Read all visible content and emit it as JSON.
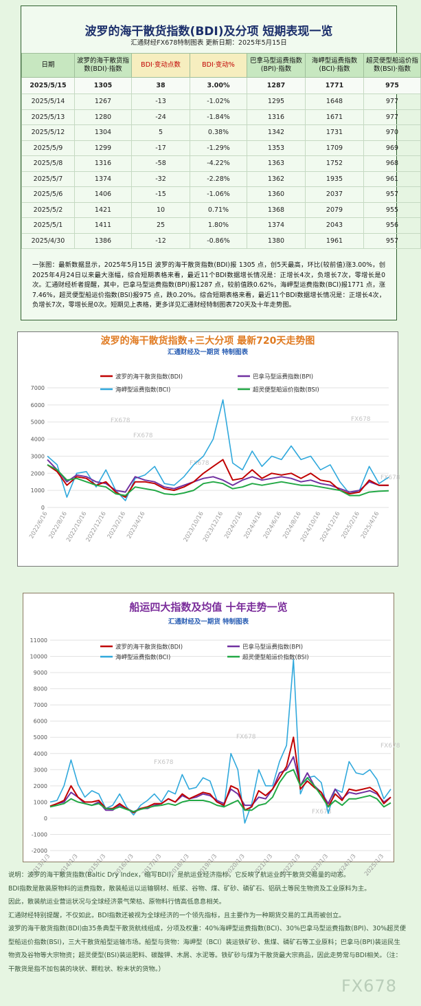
{
  "header": {
    "title": "波罗的海干散货指数(BDI)及分项  短期表现一览",
    "subtitle": "汇通财经FX678特制图表      更新日期：2025年5月15日"
  },
  "table": {
    "header": [
      "日期",
      "波罗的海干散货指数(BDI)·指数",
      "BDI·变动点数",
      "BDI·变动%",
      "巴拿马型运费指数(BPI)·指数",
      "海岬型运费指数(BCI)·指数",
      "超灵便型船运价指数(BSI)·指数"
    ],
    "rows": [
      [
        "2025/5/15",
        1305,
        38,
        "3.00%",
        1287,
        1771,
        975
      ],
      [
        "2025/5/14",
        1267,
        -13,
        "-1.02%",
        1295,
        1648,
        977
      ],
      [
        "2025/5/13",
        1280,
        -24,
        "-1.84%",
        1316,
        1671,
        977
      ],
      [
        "2025/5/12",
        1304,
        5,
        "0.38%",
        1342,
        1731,
        970
      ],
      [
        "2025/5/9",
        1299,
        -17,
        "-1.29%",
        1353,
        1709,
        969
      ],
      [
        "2025/5/8",
        1316,
        -58,
        "-4.22%",
        1363,
        1752,
        968
      ],
      [
        "2025/5/7",
        1374,
        -32,
        "-2.28%",
        1362,
        1935,
        961
      ],
      [
        "2025/5/6",
        1406,
        -15,
        "-1.06%",
        1360,
        2037,
        957
      ],
      [
        "2025/5/2",
        1421,
        10,
        "0.71%",
        1368,
        2079,
        955
      ],
      [
        "2025/5/1",
        1411,
        25,
        "1.80%",
        1374,
        2043,
        956
      ],
      [
        "2025/4/30",
        1386,
        -12,
        "-0.86%",
        1380,
        1961,
        957
      ]
    ]
  },
  "summary": "一张图：最新数据显示，2025年5月15日 波罗的海干散货指数(BDI)报 1305 点，创5天最高，环比(较前值)涨3.00%，创2025年4月24日以来最大涨幅，综合短期表格来看，最近11个BDI数据增长情况是：正增长4次，负增长7次，零增长是0次。汇通财经析者提醒，其中，巴拿马型运费指数(BPI)报1287 点，较前值跌0.62%，海岬型运费指数(BCI)报1771 点，涨7.46%，超灵便型船运价指数(BSI)报975 点，跌0.20%。综合短期表格来看，最近11个BDI数据增长情况是：正增长4次，负增长7次，零增长是0次。短期见上表格，更多详见汇通财经特制图表720天及十年走势图。",
  "watermark": "FX678",
  "chart_data": [
    {
      "type": "line",
      "title": "波罗的海干散货指数+三大分项  最新720天走势图",
      "subtitle": "汇通财经及一期货  特制图表",
      "grid": true,
      "categories": [
        "2022/6/16",
        null,
        "2022/8/16",
        null,
        "2022/10/16",
        null,
        "2022/12/16",
        null,
        "2023/2/16",
        null,
        "2023/4/16",
        null,
        null,
        null,
        null,
        null,
        "2023/10/16",
        null,
        "2023/12/16",
        null,
        "2024/2/16",
        null,
        "2024/4/16",
        null,
        "2024/6/16",
        null,
        "2024/8/16",
        null,
        "2024/10/16",
        null,
        "2024/12/16",
        null,
        "2025/2/16",
        null,
        "2025/4/16",
        null
      ],
      "ylim": [
        0,
        7000
      ],
      "yticks": [
        0,
        1000,
        2000,
        3000,
        4000,
        5000,
        6000,
        7000
      ],
      "series": [
        {
          "name": "波罗的海干散货指数(BDI)",
          "color": "#c00000",
          "values": [
            2500,
            2100,
            1300,
            1800,
            1700,
            1300,
            1500,
            900,
            600,
            1500,
            1500,
            1400,
            1100,
            1000,
            1200,
            1500,
            2000,
            2400,
            2800,
            1600,
            1700,
            2200,
            1700,
            2000,
            1900,
            2000,
            1700,
            2000,
            1600,
            1500,
            1000,
            800,
            900,
            1600,
            1300,
            1305
          ]
        },
        {
          "name": "巴拿马型运费指数(BPI)",
          "color": "#7030a0",
          "values": [
            2800,
            2200,
            1500,
            1900,
            1800,
            1500,
            1400,
            1000,
            900,
            1800,
            1600,
            1500,
            1200,
            1100,
            1300,
            1500,
            1700,
            1800,
            1600,
            1300,
            1600,
            1800,
            1600,
            1700,
            1800,
            1700,
            1500,
            1600,
            1400,
            1300,
            1100,
            900,
            1000,
            1500,
            1300,
            1287
          ]
        },
        {
          "name": "海岬型运费指数(BCI)",
          "color": "#2fa8dc",
          "values": [
            3000,
            2500,
            600,
            2000,
            2100,
            1200,
            2200,
            1000,
            400,
            1700,
            1900,
            2400,
            1400,
            1300,
            1800,
            2500,
            3000,
            4000,
            6300,
            2600,
            2200,
            3300,
            2400,
            3000,
            2800,
            3600,
            2800,
            3000,
            2200,
            2500,
            1500,
            800,
            1000,
            2400,
            1400,
            1771
          ]
        },
        {
          "name": "超灵便型船运价指数(BSI)",
          "color": "#22a845",
          "values": [
            2500,
            2200,
            1600,
            1700,
            1500,
            1300,
            1200,
            800,
            700,
            1200,
            1100,
            1000,
            800,
            750,
            850,
            1000,
            1400,
            1500,
            1400,
            1100,
            1200,
            1400,
            1300,
            1400,
            1500,
            1400,
            1300,
            1300,
            1200,
            1100,
            1000,
            700,
            700,
            900,
            950,
            975
          ]
        }
      ]
    },
    {
      "type": "line",
      "title": "船运四大指数及均值 十年走势一览",
      "subtitle": "汇通财经及一期货 特制图表",
      "grid": true,
      "categories": [
        "2013/1/3",
        null,
        null,
        null,
        "2014/1/3",
        null,
        null,
        null,
        "2015/1/3",
        null,
        null,
        null,
        "2016/1/3",
        null,
        null,
        null,
        "2017/1/3",
        null,
        null,
        null,
        "2018/1/3",
        null,
        null,
        null,
        "2019/1/3",
        null,
        null,
        null,
        "2020/1/3",
        null,
        null,
        null,
        "2021/1/3",
        null,
        null,
        null,
        "2022/1/3",
        null,
        null,
        null,
        "2023/1/3",
        null,
        null,
        null,
        "2024/1/3",
        null,
        null,
        null,
        "2025/1/3",
        null
      ],
      "ylim": [
        -2000,
        11000
      ],
      "yticks": [
        -2000,
        -1000,
        0,
        1000,
        2000,
        3000,
        4000,
        5000,
        6000,
        7000,
        8000,
        9000,
        10000,
        11000
      ],
      "series": [
        {
          "name": "波罗的海干散货指数(BDI)",
          "color": "#c00000",
          "values": [
            750,
            900,
            1100,
            2000,
            1300,
            1000,
            1000,
            1100,
            600,
            600,
            900,
            600,
            350,
            600,
            700,
            900,
            900,
            1200,
            1000,
            1500,
            1200,
            1400,
            1600,
            1500,
            1000,
            800,
            2000,
            1800,
            500,
            700,
            1700,
            1400,
            1800,
            2500,
            3200,
            5000,
            1800,
            2300,
            1900,
            1600,
            700,
            1500,
            1100,
            1800,
            1700,
            1800,
            1900,
            1600,
            900,
            1300
          ]
        },
        {
          "name": "巴拿马型运费指数(BPI)",
          "color": "#7030a0",
          "values": [
            700,
            900,
            1000,
            1600,
            1300,
            900,
            800,
            1000,
            500,
            500,
            800,
            600,
            400,
            600,
            600,
            800,
            900,
            1200,
            1000,
            1400,
            1200,
            1300,
            1500,
            1400,
            1100,
            900,
            1800,
            1500,
            800,
            800,
            1300,
            1200,
            1800,
            2800,
            3000,
            3800,
            2000,
            2800,
            2000,
            1600,
            900,
            1800,
            1200,
            1600,
            1500,
            1600,
            1700,
            1500,
            1000,
            1300
          ]
        },
        {
          "name": "海岬型运费指数(BCI)",
          "color": "#2fa8dc",
          "values": [
            1000,
            1100,
            2000,
            3600,
            2100,
            1300,
            1700,
            1500,
            600,
            800,
            1500,
            700,
            200,
            800,
            1100,
            1500,
            1000,
            1700,
            1500,
            2700,
            1800,
            1900,
            2500,
            2300,
            1100,
            700,
            4000,
            3000,
            -300,
            900,
            3000,
            2000,
            2000,
            3500,
            4500,
            9800,
            1500,
            2500,
            2600,
            2200,
            300,
            1800,
            1600,
            3500,
            2800,
            2700,
            3000,
            2400,
            1200,
            1800
          ]
        },
        {
          "name": "超灵便型船运价指数(BSI)",
          "color": "#22a845",
          "values": [
            700,
            800,
            900,
            1200,
            1000,
            900,
            800,
            900,
            600,
            550,
            700,
            550,
            400,
            550,
            650,
            750,
            800,
            900,
            800,
            1000,
            1100,
            1100,
            1100,
            1000,
            800,
            700,
            900,
            1100,
            500,
            500,
            800,
            900,
            1300,
            2200,
            2800,
            3000,
            2000,
            2500,
            2000,
            1400,
            700,
            1100,
            800,
            1200,
            1200,
            1300,
            1400,
            1200,
            700,
            950
          ]
        }
      ]
    }
  ],
  "notes": [
    "说明：波罗的海干散货指数(Baltic Dry Index，缩写BDI)，是航运业经济指标，它反映了航运业的干散货交易量的动态。",
    "BDI指数是散装原物料的运费指数，散装船运以运输钢材、纸浆、谷物、煤、矿砂、磷矿石、铝矾土等民生物资及工业原料为主。",
    "因此，散装航运业营运状况与全球经济景气荣枯、原物料行情高低息息相关。",
    "汇通财经特别提醒，不仅如此，BDI指数还被视为全球经济的一个领先指标，且主要作为一种期货交易的工具而被创立。",
    "波罗的海干散货指数(BDI)由35条典型干散货航线组成，分项及权重：40%海岬型运费指数(BCI)、30%巴拿马型运费指数(BPI)、30%超灵便型船运价指数(BSI)，三大干散货船型运输市场。船型与货物：海岬型（BCI）装运铁矿砂、焦煤、磷矿石等工业原料；巴拿马(BPI)装运民生物资及谷物等大宗物资；超灵便型(BSI)装运肥料、碳酸钾、木屑、水泥等。铁矿砂与煤为干散货最大宗商品，因此走势常与BDI相关。（注：干散货是指不加包装的块状、颗粒状、粉末状的货物。）"
  ]
}
